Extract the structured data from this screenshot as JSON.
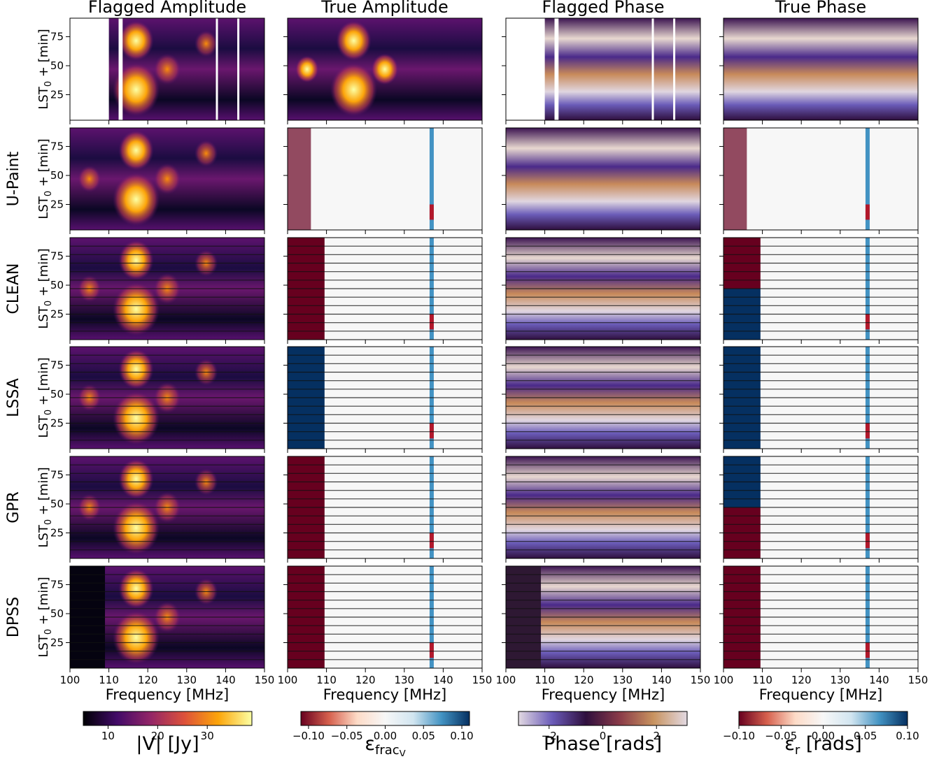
{
  "chart_data": {
    "type": "heatmap-grid",
    "column_titles": [
      "Flagged Amplitude",
      "True Amplitude",
      "Flagged Phase",
      "True Phase"
    ],
    "row_labels": [
      null,
      "U-Paint",
      "CLEAN",
      "LSSA",
      "GPR",
      "DPSS"
    ],
    "ylabel": {
      "main": "LST",
      "sub": "0",
      "rest": " + [min]"
    },
    "xlabel": "Frequency [MHz]",
    "xlim": [
      100,
      150
    ],
    "xticks": [
      100,
      110,
      120,
      130,
      140,
      150
    ],
    "ylim": [
      3,
      91
    ],
    "yticks": [
      25,
      50,
      75
    ],
    "colorbars": [
      {
        "label": "|V| [Jy]",
        "lim": [
          5,
          39
        ],
        "ticks": [
          10,
          20,
          30
        ],
        "colors": [
          "#000004",
          "#420a68",
          "#932667",
          "#dd513a",
          "#fca50a",
          "#fcffa4"
        ]
      },
      {
        "label": "ε",
        "sub": "frac",
        "subsub": "V",
        "lim": [
          -0.11,
          0.11
        ],
        "ticks": [
          {
            "value": -0.1,
            "label": "−0.10"
          },
          {
            "value": -0.05,
            "label": "−0.05"
          },
          {
            "value": 0,
            "label": "0.00"
          },
          {
            "value": 0.05,
            "label": "0.05"
          },
          {
            "value": 0.1,
            "label": "0.10"
          }
        ],
        "colors": [
          "#67001f",
          "#d6604d",
          "#fddbc7",
          "#f7f7f7",
          "#d1e5f0",
          "#4393c3",
          "#053061"
        ]
      },
      {
        "label": "Phase [rads]",
        "lim": [
          -3.14,
          3.14
        ],
        "ticks": [
          {
            "value": -2,
            "label": "−2"
          },
          0,
          2
        ],
        "colors": [
          "#e2d9e2",
          "#6a5bb8",
          "#2f0f3e",
          "#8a3a48",
          "#c8935f",
          "#e2d9e2"
        ]
      },
      {
        "label": "ε",
        "sub": "r",
        "rest": " [rads]",
        "lim": [
          -0.1,
          0.1
        ],
        "ticks": [
          {
            "value": -0.1,
            "label": "−0.10"
          },
          {
            "value": -0.05,
            "label": "−0.05"
          },
          {
            "value": 0,
            "label": "0.00"
          },
          {
            "value": 0.05,
            "label": "0.05"
          },
          {
            "value": 0.1,
            "label": "0.10"
          }
        ],
        "colors": [
          "#67001f",
          "#d6604d",
          "#fddbc7",
          "#f7f7f7",
          "#d1e5f0",
          "#4393c3",
          "#053061"
        ]
      }
    ]
  }
}
